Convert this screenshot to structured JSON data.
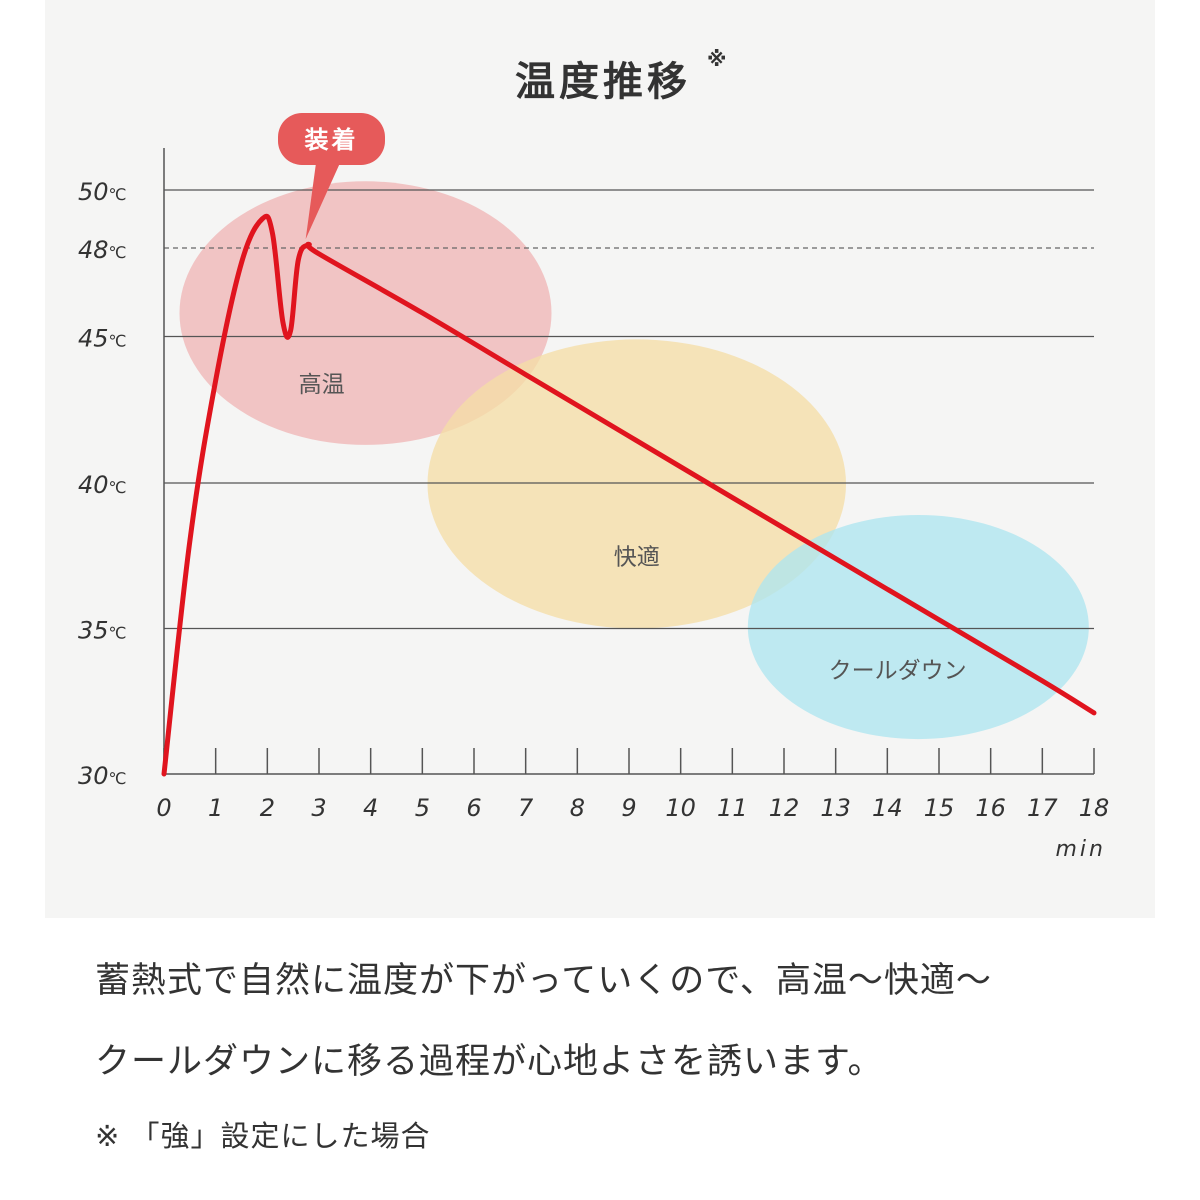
{
  "chart_data": {
    "type": "line",
    "title": "温度推移",
    "title_mark": "※",
    "xlabel": "min",
    "ylabel": "",
    "xlim": [
      0,
      18
    ],
    "ylim": [
      30,
      52
    ],
    "x_ticks": [
      "0",
      "1",
      "2",
      "3",
      "4",
      "5",
      "6",
      "7",
      "8",
      "9",
      "10",
      "11",
      "12",
      "13",
      "14",
      "15",
      "16",
      "17",
      "18"
    ],
    "y_ticks": [
      {
        "value": 30,
        "label": "30℃",
        "gridline": false
      },
      {
        "value": 35,
        "label": "35℃",
        "gridline": true
      },
      {
        "value": 40,
        "label": "40℃",
        "gridline": true
      },
      {
        "value": 45,
        "label": "45℃",
        "gridline": true
      },
      {
        "value": 48,
        "label": "48℃",
        "gridline": "dashed"
      },
      {
        "value": 50,
        "label": "50℃",
        "gridline": true
      }
    ],
    "grid": true,
    "series": [
      {
        "color": "#e0141e",
        "x": [
          0,
          0.5,
          1,
          1.5,
          1.9,
          2.1,
          2.3,
          2.45,
          2.6,
          2.8,
          3,
          5,
          7,
          9,
          11,
          13,
          15,
          17,
          18
        ],
        "y": [
          30,
          38,
          43.5,
          47.5,
          49,
          48.5,
          45.5,
          45.2,
          47.6,
          48.1,
          47.8,
          45.8,
          43.7,
          41.6,
          39.5,
          37.4,
          35.3,
          33.2,
          32.1
        ]
      }
    ],
    "zones": [
      {
        "label": "高温",
        "color": "#f0b6b6",
        "x_range": [
          0.3,
          7.5
        ],
        "y_range": [
          41.3,
          50.3
        ]
      },
      {
        "label": "快適",
        "color": "#f5dea6",
        "x_range": [
          5.1,
          13.2
        ],
        "y_range": [
          35.0,
          44.9
        ]
      },
      {
        "label": "クールダウン",
        "color": "#aee6f0",
        "x_range": [
          11.3,
          17.9
        ],
        "y_range": [
          31.2,
          38.9
        ]
      }
    ],
    "annotations": [
      {
        "text": "装着",
        "x": 2.8,
        "y": 48.1,
        "color": "#e65a5a"
      }
    ]
  },
  "caption": {
    "line1": "蓄熱式で自然に温度が下がっていくので、高温〜快適〜",
    "line2": "クールダウンに移る過程が心地よさを誘います。"
  },
  "footnote": "※ 「強」設定にした場合"
}
